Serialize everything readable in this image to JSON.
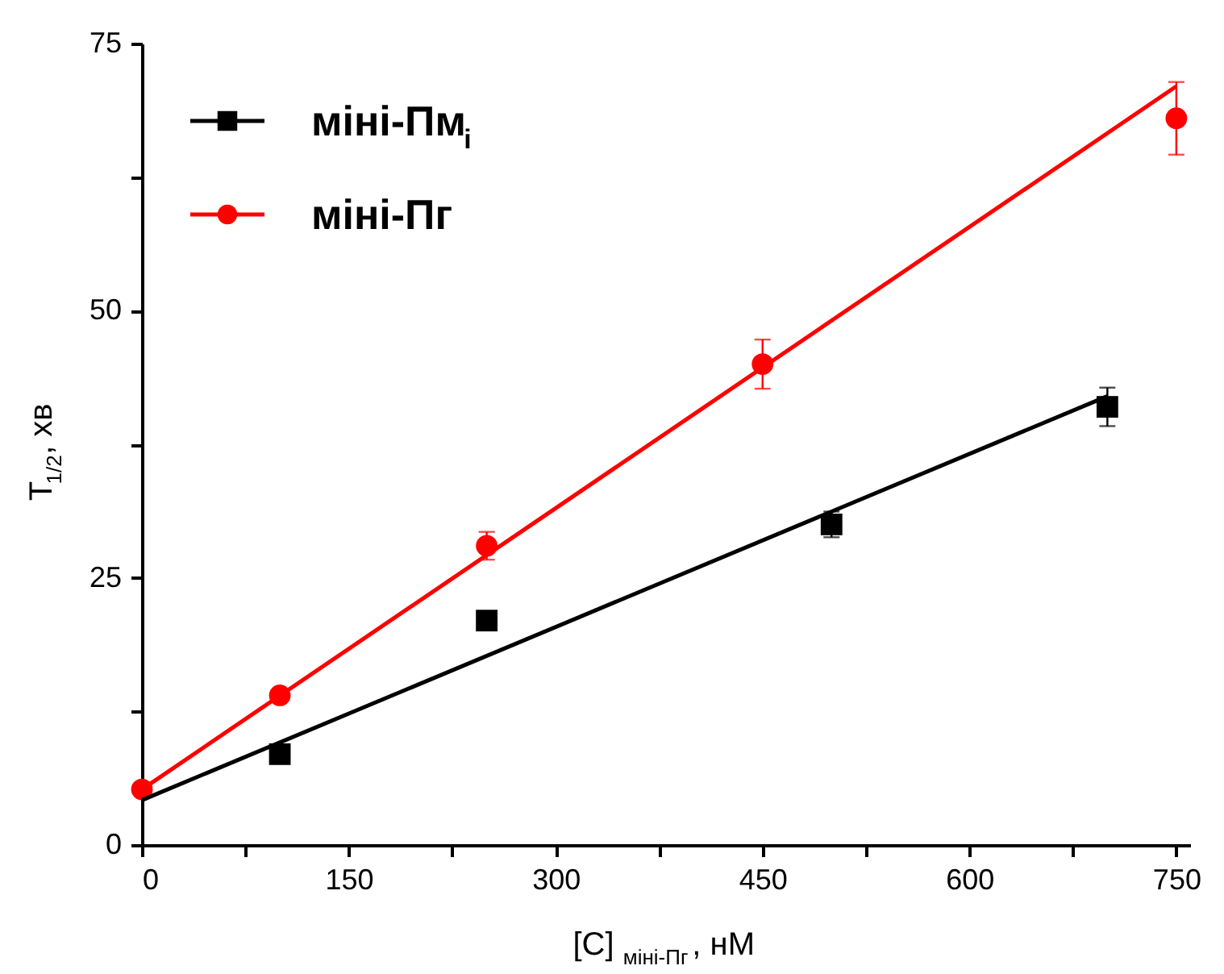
{
  "chart_data": {
    "type": "scatter",
    "xlabel": "[C]$_{міні-Пг}$, нМ",
    "ylabel": "T$_{1/2}$, хв",
    "xlim": [
      0,
      760
    ],
    "ylim": [
      0,
      75
    ],
    "xticks": [
      0,
      {
        "value": 75,
        "label": null
      },
      150,
      {
        "value": 225,
        "label": null
      },
      300,
      {
        "value": 375,
        "label": null
      },
      450,
      {
        "value": 525,
        "label": null
      },
      600,
      {
        "value": 675,
        "label": null
      },
      750
    ],
    "yticks": [
      0,
      {
        "value": 12.5,
        "label": null
      },
      25,
      {
        "value": 37.5,
        "label": null
      },
      50,
      {
        "value": 62.5,
        "label": null
      },
      75
    ],
    "grid": false,
    "legend": "top left",
    "series": [
      {
        "name": "міні-Пм$_{i}$",
        "marker": "square",
        "color": "#000000",
        "x": [
          100,
          250,
          500,
          700
        ],
        "values": [
          8.5,
          21,
          30,
          41
        ],
        "errors": [
          null,
          0.8,
          1.2,
          1.8
        ]
      },
      {
        "name": "міні-Пг",
        "marker": "circle",
        "color": "#ff0000",
        "x": [
          0,
          100,
          250,
          450,
          750
        ],
        "values": [
          5.2,
          14,
          28,
          45,
          68
        ],
        "errors": [
          null,
          null,
          1.3,
          2.3,
          3.4
        ]
      },
      {
        "type": "line",
        "line_style": "solid",
        "color": "#000000",
        "x": [
          0,
          700
        ],
        "values": [
          4.2,
          42
        ]
      },
      {
        "type": "line",
        "line_style": "solid",
        "color": "#ff0000",
        "x": [
          0,
          750
        ],
        "values": [
          5.2,
          71
        ]
      }
    ]
  }
}
